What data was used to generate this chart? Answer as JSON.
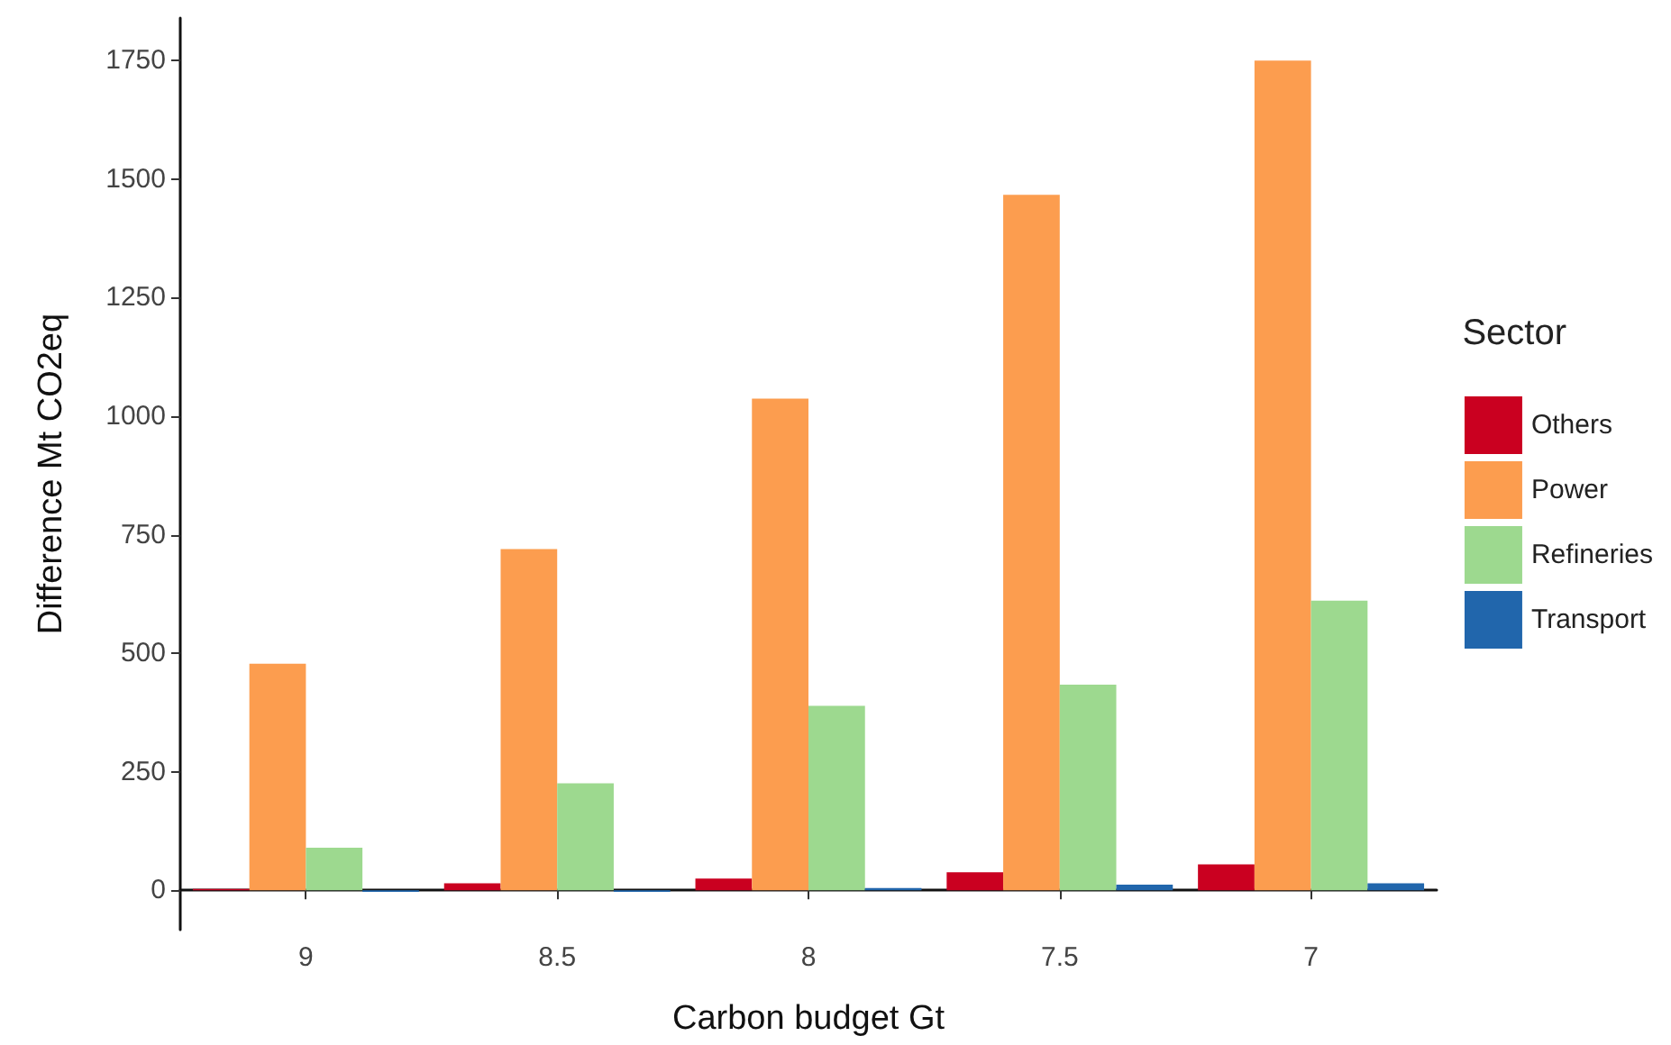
{
  "chart_data": {
    "type": "bar",
    "xlabel": "Carbon budget Gt",
    "ylabel": "Difference Mt CO2eq",
    "legend_title": "Sector",
    "categories": [
      "9",
      "8.5",
      "8",
      "7.5",
      "7"
    ],
    "series": [
      {
        "name": "Others",
        "color": "#ca0020",
        "values": [
          3,
          15,
          25,
          38,
          55
        ]
      },
      {
        "name": "Power",
        "color": "#fc9d4f",
        "values": [
          478,
          720,
          1037,
          1467,
          1750
        ]
      },
      {
        "name": "Refineries",
        "color": "#9dd98f",
        "values": [
          90,
          226,
          389,
          434,
          611
        ]
      },
      {
        "name": "Transport",
        "color": "#2166ac",
        "values": [
          -3,
          -3,
          5,
          12,
          15
        ]
      }
    ],
    "ylim": [
      -83,
      1840
    ],
    "yticks": [
      0,
      250,
      500,
      750,
      1000,
      1250,
      1500,
      1750
    ],
    "grid": false,
    "legend": "right"
  }
}
